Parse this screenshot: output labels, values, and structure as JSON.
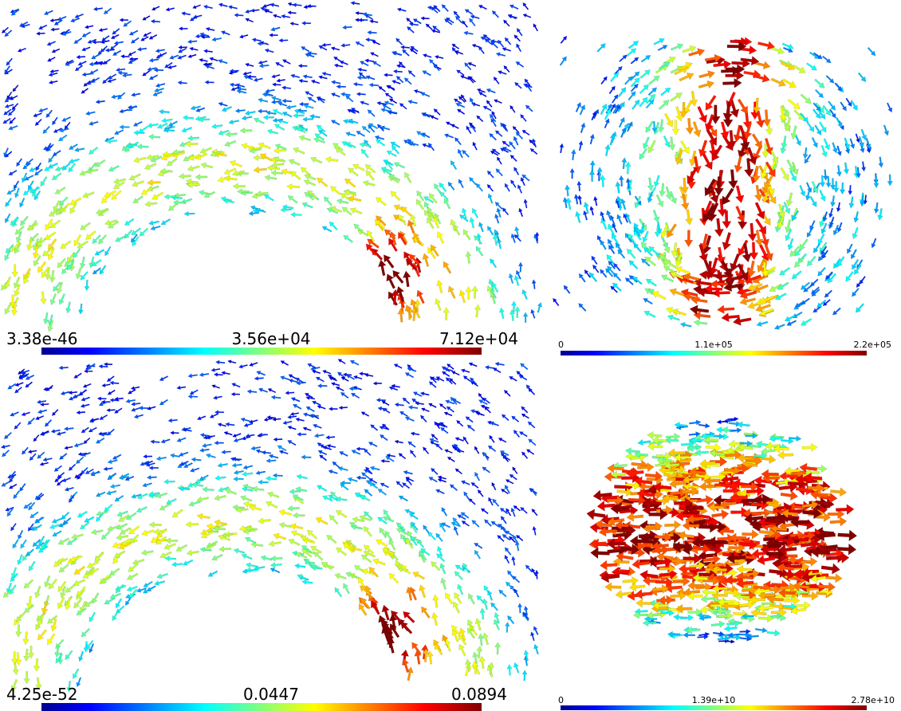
{
  "panels": [
    {
      "colorbar_labels": [
        "3.38e-46",
        "3.56e+04",
        "7.12e+04"
      ]
    },
    {
      "colorbar_labels": [
        "0",
        "1.1e+05",
        "2.2e+05"
      ]
    },
    {
      "colorbar_labels": [
        "4.25e-52",
        "0.0447",
        "0.0894"
      ]
    },
    {
      "colorbar_labels": [
        "0",
        "1.39e+10",
        "2.78e+10"
      ]
    }
  ]
}
